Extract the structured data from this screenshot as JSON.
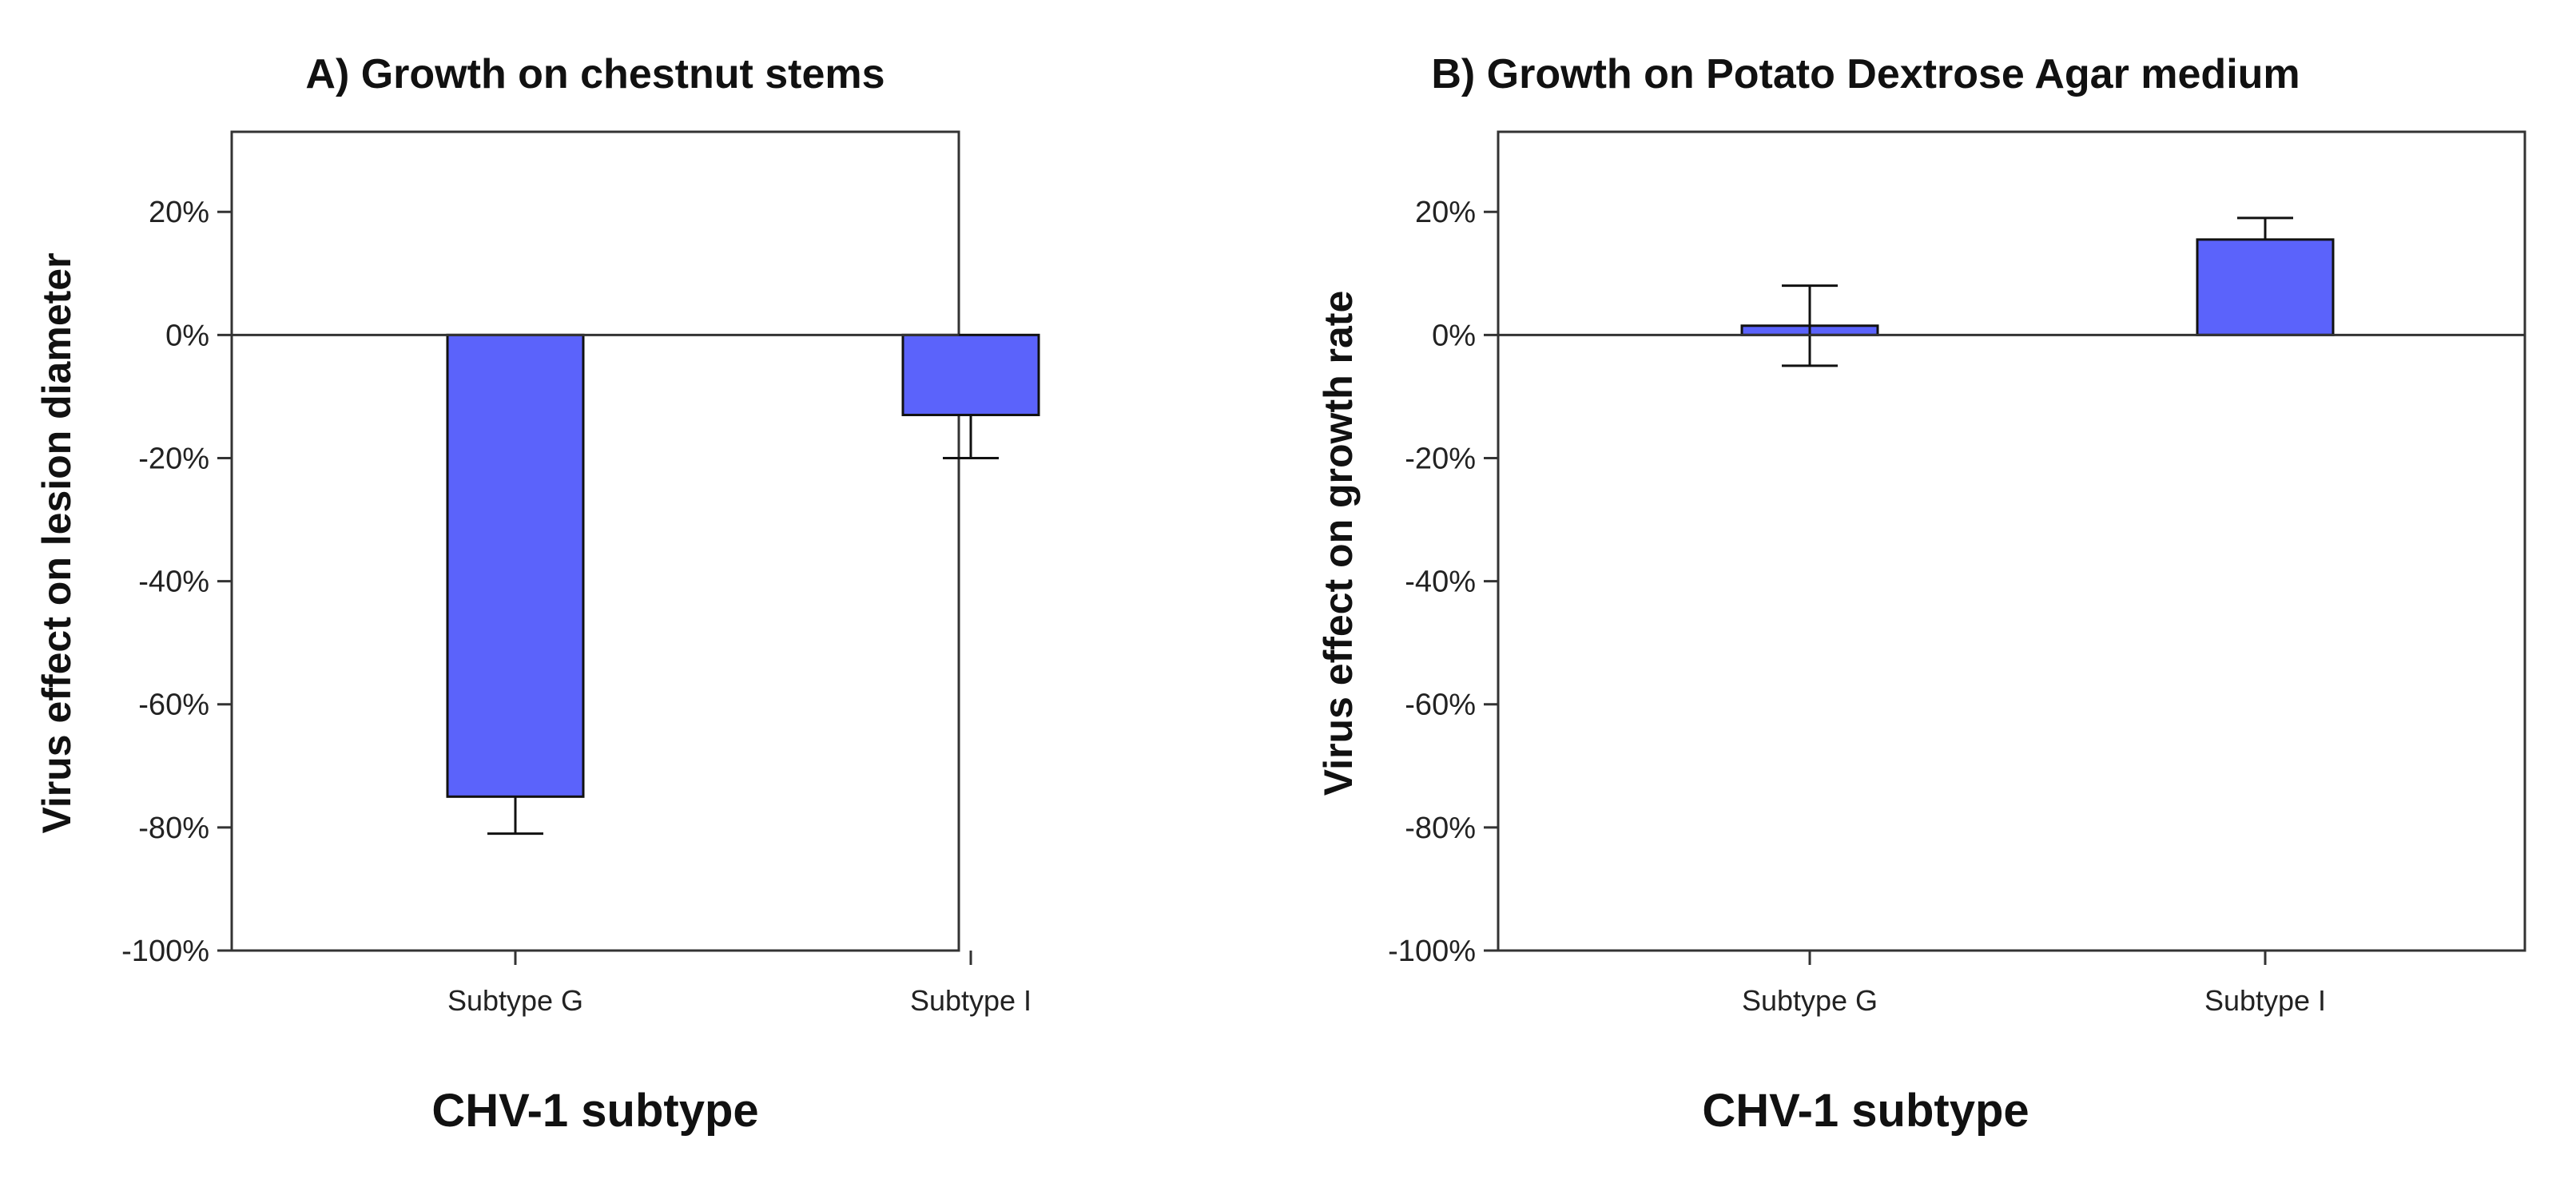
{
  "colors": {
    "bar_fill": "#5b63fb",
    "bar_stroke": "#111111",
    "axis": "#333333"
  },
  "chart_data": [
    {
      "type": "bar",
      "title": "A) Growth on chestnut stems",
      "xlabel": "CHV-1 subtype",
      "ylabel": "Virus effect on lesion diameter",
      "categories": [
        "Subtype G",
        "Subtype I"
      ],
      "values": [
        -75,
        -13
      ],
      "error_lower": [
        -81,
        -20
      ],
      "error_upper": [
        -75,
        -13
      ],
      "ylim": [
        -100,
        33
      ],
      "yticks": [
        -100,
        -80,
        -60,
        -40,
        -20,
        0,
        20
      ],
      "ytick_labels": [
        "-100%",
        "-80%",
        "-60%",
        "-40%",
        "-20%",
        "0%",
        "20%"
      ],
      "grid": false
    },
    {
      "type": "bar",
      "title": "B) Growth on Potato Dextrose Agar medium",
      "xlabel": "CHV-1 subtype",
      "ylabel": "Virus effect on growth rate",
      "categories": [
        "Subtype G",
        "Subtype I"
      ],
      "values": [
        1.5,
        15.5
      ],
      "error_lower": [
        -5,
        15.5
      ],
      "error_upper": [
        8,
        19
      ],
      "ylim": [
        -100,
        33
      ],
      "yticks": [
        -100,
        -80,
        -60,
        -40,
        -20,
        0,
        20
      ],
      "ytick_labels": [
        "-100%",
        "-80%",
        "-60%",
        "-40%",
        "-20%",
        "0%",
        "20%"
      ],
      "grid": false
    }
  ]
}
